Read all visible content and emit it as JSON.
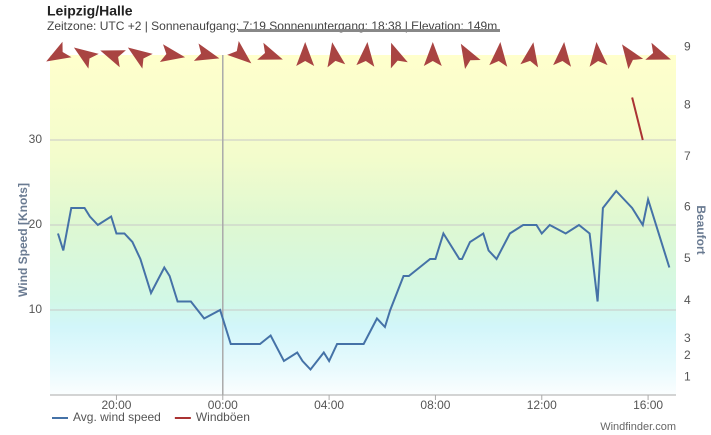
{
  "header": {
    "title": "Leipzig/Halle",
    "subtitle": "Zeitzone: UTC +2 | Sonnenaufgang: 7:19 Sonnenuntergang: 18:38 | Elevation: 149m"
  },
  "chart_data": {
    "type": "line",
    "y_label": "Wind Speed [Knots]",
    "xlim": [
      17.5,
      41.05
    ],
    "xticks": [
      {
        "value": 20,
        "label": "20:00"
      },
      {
        "value": 24,
        "label": "00:00"
      },
      {
        "value": 28,
        "label": "04:00"
      },
      {
        "value": 32,
        "label": "08:00"
      },
      {
        "value": 36,
        "label": "12:00"
      },
      {
        "value": 40,
        "label": "16:00"
      }
    ],
    "ylim": [
      0,
      40
    ],
    "yticks": [
      10,
      20,
      30
    ],
    "grid": true,
    "series": [
      {
        "name": "Avg. wind speed",
        "color": "#4572a7",
        "x": [
          17.8,
          18.0,
          18.3,
          18.8,
          19.0,
          19.3,
          19.8,
          20.0,
          20.3,
          20.6,
          20.9,
          21.3,
          21.8,
          22.0,
          22.3,
          22.8,
          23.3,
          23.9,
          24.3,
          25.4,
          25.8,
          26.3,
          26.8,
          27.0,
          27.3,
          27.8,
          28.0,
          28.3,
          29.3,
          29.8,
          30.1,
          30.3,
          30.8,
          31.0,
          31.4,
          31.8,
          32.0,
          32.3,
          32.9,
          33.0,
          33.3,
          33.8,
          34.0,
          34.3,
          34.8,
          35.3,
          35.8,
          36.0,
          36.3,
          36.9,
          37.4,
          37.8,
          38.1,
          38.3,
          38.8,
          39.1,
          39.4,
          39.8,
          40.0,
          40.8
        ],
        "values": [
          19,
          17,
          22,
          22,
          21,
          20,
          21,
          19,
          19,
          18,
          16,
          12,
          15,
          14,
          11,
          11,
          9,
          10,
          6,
          6,
          7,
          4,
          5,
          4,
          3,
          5,
          4,
          6,
          6,
          9,
          8,
          10,
          14,
          14,
          15,
          16,
          16,
          19,
          16,
          16,
          18,
          19,
          17,
          16,
          19,
          20,
          20,
          19,
          20,
          19,
          20,
          19,
          11,
          22,
          24,
          23,
          22,
          20,
          23,
          15
        ]
      },
      {
        "name": "Windböen",
        "color": "#aa3333",
        "x": [
          39.4,
          39.8
        ],
        "values": [
          35,
          30
        ]
      }
    ],
    "beaufort": {
      "label": "Beaufort",
      "levels": [
        1,
        2,
        3,
        4,
        5,
        6,
        7,
        8,
        9
      ],
      "knots": [
        2.1,
        4.6,
        6.6,
        11.1,
        16.0,
        22.1,
        28.0,
        34.1,
        40.9
      ]
    },
    "direction_arrows": {
      "color": "#a94442",
      "x": [
        17.78,
        18.8,
        19.85,
        20.83,
        22.1,
        23.4,
        24.7,
        25.8,
        27.1,
        28.2,
        29.4,
        30.5,
        31.9,
        33.2,
        34.4,
        35.6,
        36.8,
        38.1,
        39.3,
        40.4
      ],
      "angle": [
        150,
        215,
        200,
        215,
        10,
        15,
        40,
        20,
        270,
        260,
        275,
        250,
        270,
        240,
        275,
        280,
        275,
        265,
        235,
        20
      ]
    },
    "legend": "bottom-left"
  },
  "footer": {
    "credit": "Windfinder.com"
  }
}
